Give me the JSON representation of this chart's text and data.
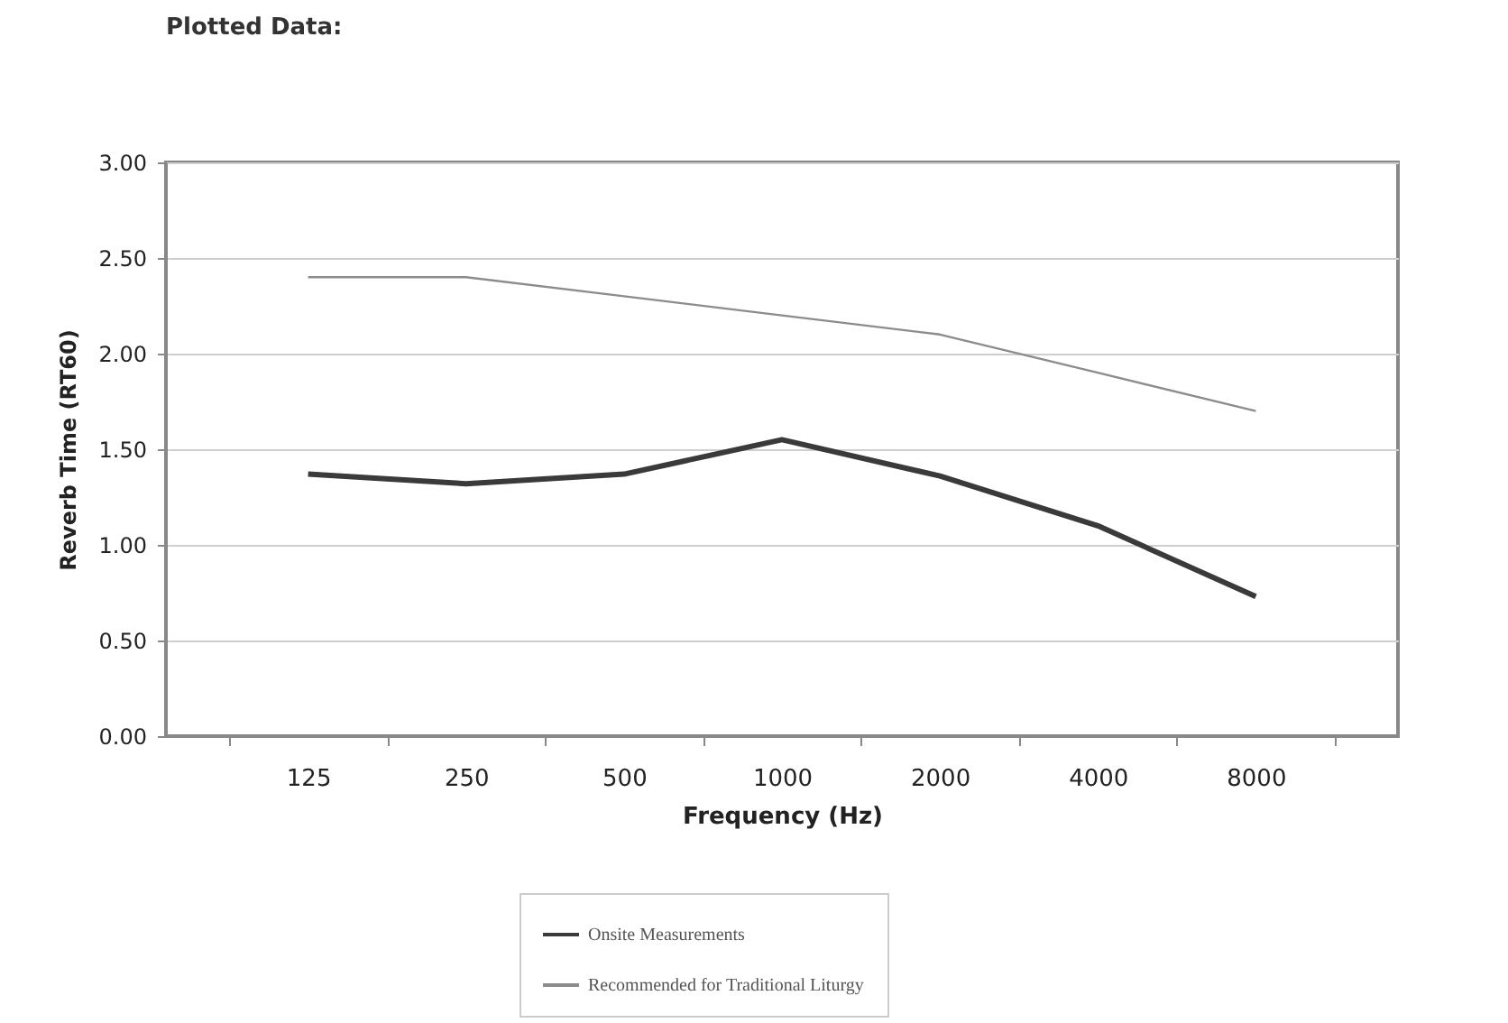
{
  "chart_data": {
    "type": "line",
    "title": "Plotted Data:",
    "xlabel": "Frequency (Hz)",
    "ylabel": "Reverb Time (RT60)",
    "categories": [
      "125",
      "250",
      "500",
      "1000",
      "2000",
      "4000",
      "8000"
    ],
    "series": [
      {
        "name": "Onsite Measurements",
        "color": "#3a3a3a",
        "values": [
          1.37,
          1.32,
          1.37,
          1.55,
          1.36,
          1.1,
          0.73
        ]
      },
      {
        "name": "Recommended for Traditional Liturgy",
        "color": "#8c8c8c",
        "values": [
          2.4,
          2.4,
          2.3,
          2.2,
          2.1,
          1.9,
          1.7
        ]
      }
    ],
    "ylim": [
      0,
      3
    ],
    "yticks": [
      {
        "value": 0,
        "label": "0.00"
      },
      {
        "value": 0.5,
        "label": "0.50"
      },
      {
        "value": 1,
        "label": "1.00"
      },
      {
        "value": 1.5,
        "label": "1.50"
      },
      {
        "value": 2,
        "label": "2.00"
      },
      {
        "value": 2.5,
        "label": "2.50"
      },
      {
        "value": 3,
        "label": "3.00"
      }
    ],
    "grid": "y",
    "legend": "bottom",
    "marker": "none",
    "line_style": "solid"
  }
}
